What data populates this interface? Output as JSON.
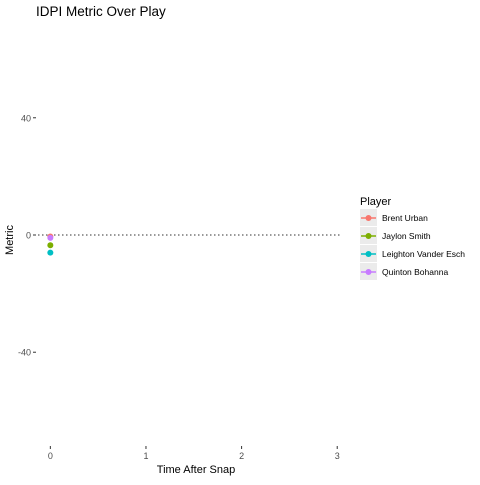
{
  "chart_data": {
    "type": "scatter",
    "title": "IDPI Metric Over Play",
    "xlabel": "Time After Snap",
    "ylabel": "Metric",
    "xlim": [
      -0.15,
      3.05
    ],
    "ylim": [
      -72,
      72
    ],
    "x_ticks": [
      0,
      1,
      2,
      3
    ],
    "y_ticks": [
      40,
      0,
      -40
    ],
    "reference_line": {
      "y": 0,
      "style": "dotted"
    },
    "grid": false,
    "legend": {
      "title": "Player",
      "position": "right"
    },
    "series": [
      {
        "name": "Brent Urban",
        "color": "#F8766D",
        "points": [
          [
            0,
            -0.5
          ]
        ]
      },
      {
        "name": "Jaylon Smith",
        "color": "#7CAE00",
        "points": [
          [
            0,
            -3.5
          ]
        ]
      },
      {
        "name": "Leighton Vander Esch",
        "color": "#00BFC4",
        "points": [
          [
            0,
            -6
          ]
        ]
      },
      {
        "name": "Quinton Bohanna",
        "color": "#C77CFF",
        "points": [
          [
            0,
            -1
          ]
        ]
      }
    ]
  }
}
